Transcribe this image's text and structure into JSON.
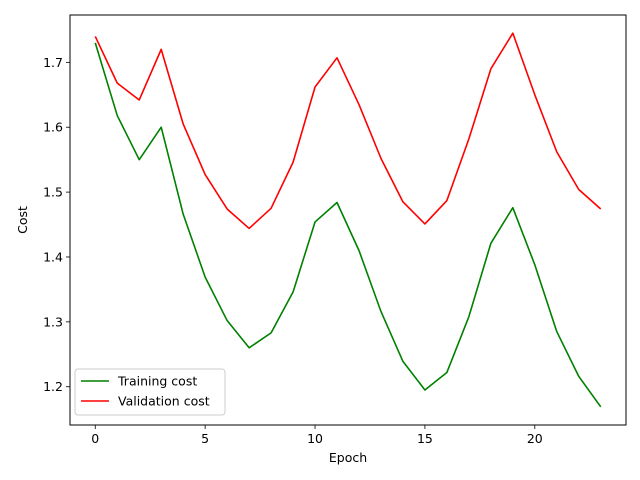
{
  "chart_data": {
    "type": "line",
    "title": "",
    "xlabel": "Epoch",
    "ylabel": "Cost",
    "xlim": [
      -1.15,
      24.15
    ],
    "ylim": [
      1.141,
      1.773
    ],
    "xticks": [
      0,
      5,
      10,
      15,
      20
    ],
    "yticks": [
      1.2,
      1.3,
      1.4,
      1.5,
      1.6,
      1.7
    ],
    "ytick_labels": [
      "1.2",
      "1.3",
      "1.4",
      "1.5",
      "1.6",
      "1.7"
    ],
    "grid": false,
    "legend_position": "lower-left",
    "x": [
      0,
      1,
      2,
      3,
      4,
      5,
      6,
      7,
      8,
      9,
      10,
      11,
      12,
      13,
      14,
      15,
      16,
      17,
      18,
      19,
      20,
      21,
      22,
      23
    ],
    "series": [
      {
        "name": "Training cost",
        "color": "#008000",
        "values": [
          1.73,
          1.618,
          1.55,
          1.6,
          1.466,
          1.369,
          1.302,
          1.26,
          1.283,
          1.346,
          1.454,
          1.484,
          1.41,
          1.316,
          1.239,
          1.195,
          1.222,
          1.308,
          1.421,
          1.476,
          1.388,
          1.285,
          1.216,
          1.169
        ]
      },
      {
        "name": "Validation cost",
        "color": "#ff0000",
        "values": [
          1.74,
          1.668,
          1.642,
          1.72,
          1.605,
          1.527,
          1.474,
          1.444,
          1.475,
          1.546,
          1.662,
          1.707,
          1.635,
          1.552,
          1.485,
          1.451,
          1.487,
          1.582,
          1.69,
          1.745,
          1.65,
          1.562,
          1.504,
          1.474
        ]
      }
    ]
  }
}
